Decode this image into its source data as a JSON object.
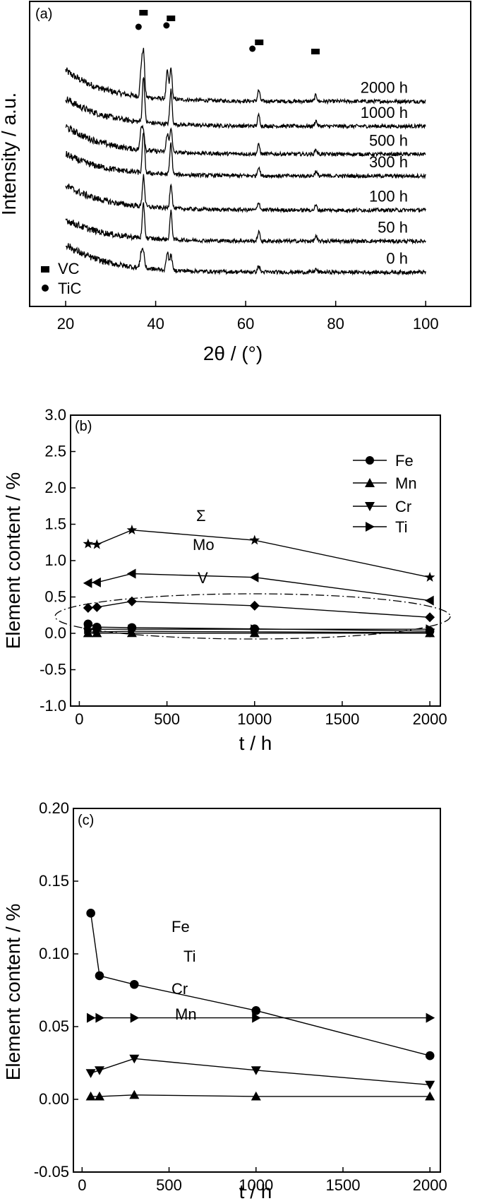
{
  "chart_data": [
    {
      "panel": "(a)",
      "type": "line",
      "xlabel": "2θ / (°)",
      "ylabel": "Intensity / a.u.",
      "xlim": [
        12,
        110
      ],
      "xticks": [
        "20",
        "40",
        "60",
        "80",
        "100"
      ],
      "grid": false,
      "legend_position": "bottom-left",
      "legend": [
        {
          "marker": "square",
          "label": "VC"
        },
        {
          "marker": "circle",
          "label": "TiC"
        }
      ],
      "series": [
        {
          "name": "2000 h",
          "baseline": 6.6,
          "start": 7.6,
          "peaks": [
            [
              36.8,
              0.9
            ],
            [
              37.3,
              1.4
            ],
            [
              42.6,
              0.9
            ],
            [
              43.4,
              1.0
            ],
            [
              62.9,
              0.35
            ],
            [
              75.6,
              0.2
            ]
          ]
        },
        {
          "name": "1000 h",
          "baseline": 5.8,
          "start": 6.7,
          "peaks": [
            [
              37.3,
              1.5
            ],
            [
              43.4,
              1.1
            ],
            [
              62.9,
              0.35
            ],
            [
              75.6,
              0.18
            ]
          ]
        },
        {
          "name": "500 h",
          "baseline": 4.9,
          "start": 5.8,
          "peaks": [
            [
              36.8,
              0.7
            ],
            [
              37.3,
              0.6
            ],
            [
              42.6,
              0.6
            ],
            [
              43.4,
              0.8
            ],
            [
              62.9,
              0.3
            ],
            [
              75.6,
              0.15
            ]
          ]
        },
        {
          "name": "300 h",
          "baseline": 4.2,
          "start": 4.9,
          "peaks": [
            [
              37.3,
              1.35
            ],
            [
              43.4,
              1.0
            ],
            [
              62.9,
              0.3
            ],
            [
              75.6,
              0.15
            ]
          ]
        },
        {
          "name": "100 h",
          "baseline": 3.1,
          "start": 3.9,
          "peaks": [
            [
              37.3,
              1.0
            ],
            [
              43.4,
              0.8
            ],
            [
              62.9,
              0.25
            ],
            [
              75.6,
              0.15
            ]
          ]
        },
        {
          "name": "50 h",
          "baseline": 2.1,
          "start": 2.8,
          "peaks": [
            [
              37.3,
              1.1
            ],
            [
              43.4,
              0.9
            ],
            [
              62.9,
              0.3
            ],
            [
              75.6,
              0.15
            ]
          ]
        },
        {
          "name": "0 h",
          "baseline": 1.1,
          "start": 2.0,
          "peaks": [
            [
              36.8,
              0.5
            ],
            [
              37.3,
              0.5
            ],
            [
              42.6,
              0.6
            ],
            [
              43.4,
              0.5
            ],
            [
              62.9,
              0.2
            ],
            [
              75.6,
              0.1
            ]
          ]
        }
      ],
      "peak_markers": [
        {
          "marker": "square",
          "x": 37.3
        },
        {
          "marker": "square",
          "x": 43.4
        },
        {
          "marker": "square",
          "x": 63.0
        },
        {
          "marker": "square",
          "x": 75.5
        },
        {
          "marker": "circle",
          "x": 36.2
        },
        {
          "marker": "circle",
          "x": 42.4
        },
        {
          "marker": "circle",
          "x": 61.5
        }
      ]
    },
    {
      "panel": "(b)",
      "type": "line",
      "xlabel": "t / h",
      "ylabel": "Element content / %",
      "xlim": [
        -50,
        2060
      ],
      "ylim": [
        -1.0,
        3.0
      ],
      "xticks": [
        0,
        500,
        1000,
        1500,
        2000
      ],
      "yticks": [
        "-1.0",
        "-0.5",
        "0.0",
        "0.5",
        "1.0",
        "1.5",
        "2.0",
        "2.5",
        "3.0"
      ],
      "legend_position": "top-right",
      "legend": [
        "Fe",
        "Mn",
        "Cr",
        "Ti"
      ],
      "x": [
        50,
        100,
        300,
        1000,
        2000
      ],
      "series": [
        {
          "name": "Σ",
          "marker": "star",
          "values": [
            1.23,
            1.22,
            1.42,
            1.28,
            0.77
          ]
        },
        {
          "name": "Mo",
          "marker": "triangle-left",
          "values": [
            0.69,
            0.7,
            0.82,
            0.77,
            0.45
          ]
        },
        {
          "name": "V",
          "marker": "diamond",
          "values": [
            0.35,
            0.36,
            0.44,
            0.38,
            0.22
          ]
        },
        {
          "name": "Fe",
          "marker": "circle",
          "values": [
            0.128,
            0.085,
            0.079,
            0.061,
            0.03
          ]
        },
        {
          "name": "Ti",
          "marker": "triangle-right",
          "values": [
            0.056,
            0.056,
            0.056,
            0.056,
            0.056
          ]
        },
        {
          "name": "Cr",
          "marker": "triangle-down",
          "values": [
            0.018,
            0.02,
            0.028,
            0.02,
            0.01
          ]
        },
        {
          "name": "Mn",
          "marker": "triangle-up",
          "values": [
            0.002,
            0.002,
            0.003,
            0.002,
            0.002
          ]
        }
      ],
      "annotations": [
        "Σ",
        "Mo",
        "V"
      ]
    },
    {
      "panel": "(c)",
      "type": "line",
      "xlabel": "t / h",
      "ylabel": "Element content / %",
      "xlim": [
        -50,
        2060
      ],
      "ylim": [
        -0.05,
        0.2
      ],
      "xticks": [
        0,
        500,
        1000,
        1500,
        2000
      ],
      "yticks": [
        "-0.05",
        "0.00",
        "0.05",
        "0.10",
        "0.15",
        "0.20"
      ],
      "x": [
        50,
        100,
        300,
        1000,
        2000
      ],
      "series": [
        {
          "name": "Fe",
          "marker": "circle",
          "values": [
            0.128,
            0.085,
            0.079,
            0.061,
            0.03
          ]
        },
        {
          "name": "Ti",
          "marker": "triangle-right",
          "values": [
            0.056,
            0.056,
            0.056,
            0.056,
            0.056
          ]
        },
        {
          "name": "Cr",
          "marker": "triangle-down",
          "values": [
            0.018,
            0.02,
            0.028,
            0.02,
            0.01
          ]
        },
        {
          "name": "Mn",
          "marker": "triangle-up",
          "values": [
            0.002,
            0.002,
            0.003,
            0.002,
            0.002
          ]
        }
      ],
      "annotations": [
        "Fe",
        "Ti",
        "Cr",
        "Mn"
      ]
    }
  ]
}
